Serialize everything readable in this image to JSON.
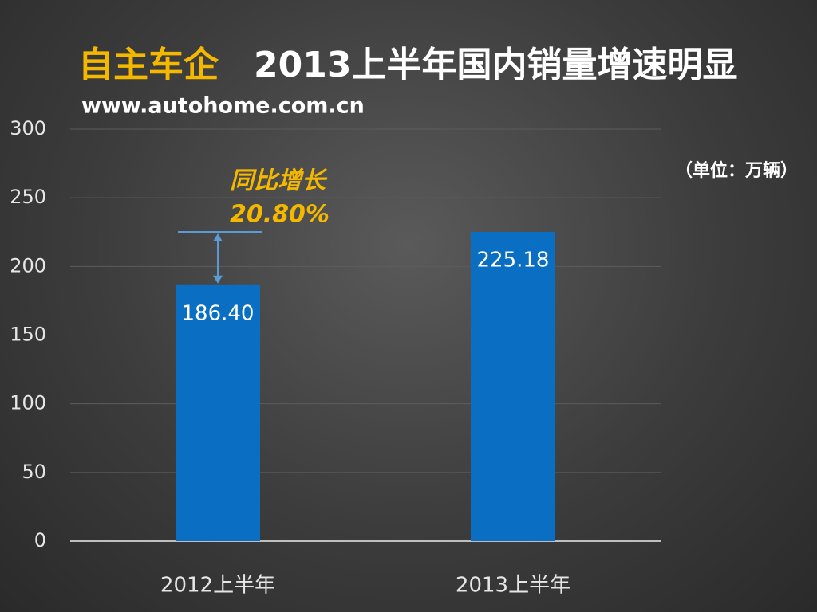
{
  "chart_data": {
    "type": "bar",
    "title_highlight": "自主车企",
    "title": "2013上半年国内销量增速明显",
    "subtitle": "www.autohome.com.cn",
    "unit_label": "（单位：万辆）",
    "annotation": {
      "label": "同比增长",
      "value_label": "20.80%"
    },
    "categories": [
      "2012上半年",
      "2013上半年"
    ],
    "values": [
      186.4,
      225.18
    ],
    "value_labels": [
      "186.40",
      "225.18"
    ],
    "color": "#0a6fc2",
    "ylim": [
      0,
      300
    ],
    "yticks": [
      0,
      50,
      100,
      150,
      200,
      250,
      300
    ],
    "grid": true
  }
}
